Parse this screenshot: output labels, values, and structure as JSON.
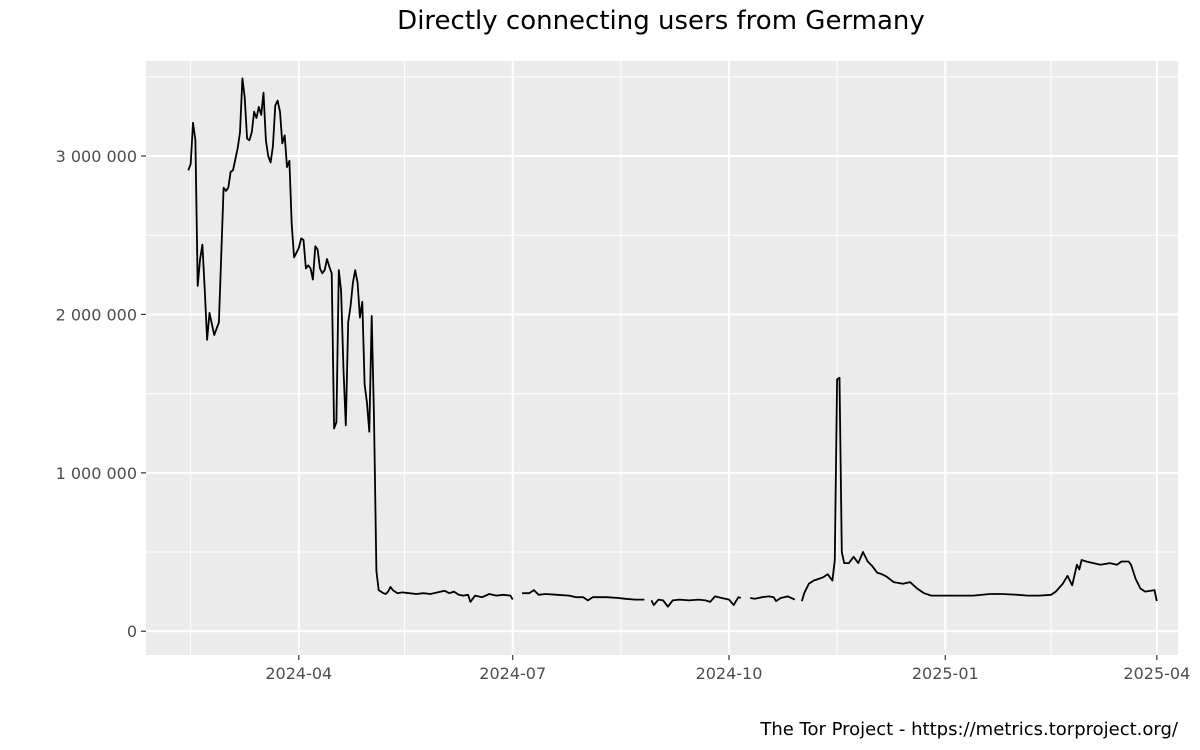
{
  "chart_data": {
    "type": "line",
    "title": "Directly connecting users from Germany",
    "xlabel": "",
    "ylabel": "",
    "ylim": [
      -150000,
      3600000
    ],
    "xlim": [
      "2024-01-27",
      "2025-04-10"
    ],
    "y_ticks": [
      0,
      1000000,
      2000000,
      3000000
    ],
    "y_tick_labels": [
      "0",
      "1 000 000",
      "2 000 000",
      "3 000 000"
    ],
    "x_ticks": [
      "2024-04-01",
      "2024-07-01",
      "2024-10-01",
      "2025-01-01",
      "2025-04-01"
    ],
    "x_tick_labels": [
      "2024-04",
      "2024-07",
      "2024-10",
      "2025-01",
      "2025-04"
    ],
    "x_minor_ticks": [
      "2024-02-15",
      "2024-05-16",
      "2024-08-16",
      "2024-11-16",
      "2025-02-15"
    ],
    "series": [
      {
        "name": "Directly connecting users",
        "color": "#000000",
        "points": [
          [
            "2024-02-14",
            2910000
          ],
          [
            "2024-02-15",
            2950000
          ],
          [
            "2024-02-16",
            3210000
          ],
          [
            "2024-02-17",
            3100000
          ],
          [
            "2024-02-18",
            2180000
          ],
          [
            "2024-02-19",
            2350000
          ],
          [
            "2024-02-20",
            2440000
          ],
          [
            "2024-02-21",
            2150000
          ],
          [
            "2024-02-22",
            1840000
          ],
          [
            "2024-02-23",
            2010000
          ],
          [
            "2024-02-25",
            1870000
          ],
          [
            "2024-02-27",
            1950000
          ],
          [
            "2024-02-29",
            2800000
          ],
          [
            "2024-03-01",
            2780000
          ],
          [
            "2024-03-02",
            2800000
          ],
          [
            "2024-03-03",
            2900000
          ],
          [
            "2024-03-04",
            2910000
          ],
          [
            "2024-03-06",
            3050000
          ],
          [
            "2024-03-07",
            3150000
          ],
          [
            "2024-03-08",
            3490000
          ],
          [
            "2024-03-09",
            3370000
          ],
          [
            "2024-03-10",
            3110000
          ],
          [
            "2024-03-11",
            3100000
          ],
          [
            "2024-03-12",
            3150000
          ],
          [
            "2024-03-13",
            3280000
          ],
          [
            "2024-03-14",
            3240000
          ],
          [
            "2024-03-15",
            3310000
          ],
          [
            "2024-03-16",
            3260000
          ],
          [
            "2024-03-17",
            3400000
          ],
          [
            "2024-03-18",
            3100000
          ],
          [
            "2024-03-19",
            3000000
          ],
          [
            "2024-03-20",
            2960000
          ],
          [
            "2024-03-21",
            3060000
          ],
          [
            "2024-03-22",
            3320000
          ],
          [
            "2024-03-23",
            3350000
          ],
          [
            "2024-03-24",
            3280000
          ],
          [
            "2024-03-25",
            3080000
          ],
          [
            "2024-03-26",
            3130000
          ],
          [
            "2024-03-27",
            2930000
          ],
          [
            "2024-03-28",
            2970000
          ],
          [
            "2024-03-29",
            2570000
          ],
          [
            "2024-03-30",
            2360000
          ],
          [
            "2024-03-31",
            2390000
          ],
          [
            "2024-04-01",
            2420000
          ],
          [
            "2024-04-02",
            2480000
          ],
          [
            "2024-04-03",
            2470000
          ],
          [
            "2024-04-04",
            2290000
          ],
          [
            "2024-04-05",
            2310000
          ],
          [
            "2024-04-06",
            2290000
          ],
          [
            "2024-04-07",
            2220000
          ],
          [
            "2024-04-08",
            2430000
          ],
          [
            "2024-04-09",
            2410000
          ],
          [
            "2024-04-10",
            2290000
          ],
          [
            "2024-04-11",
            2260000
          ],
          [
            "2024-04-12",
            2280000
          ],
          [
            "2024-04-13",
            2350000
          ],
          [
            "2024-04-14",
            2300000
          ],
          [
            "2024-04-15",
            2260000
          ],
          [
            "2024-04-16",
            1280000
          ],
          [
            "2024-04-17",
            1320000
          ],
          [
            "2024-04-18",
            2280000
          ],
          [
            "2024-04-19",
            2150000
          ],
          [
            "2024-04-20",
            1650000
          ],
          [
            "2024-04-21",
            1300000
          ],
          [
            "2024-04-22",
            1950000
          ],
          [
            "2024-04-23",
            2050000
          ],
          [
            "2024-04-24",
            2200000
          ],
          [
            "2024-04-25",
            2280000
          ],
          [
            "2024-04-26",
            2200000
          ],
          [
            "2024-04-27",
            1980000
          ],
          [
            "2024-04-28",
            2080000
          ],
          [
            "2024-04-29",
            1560000
          ],
          [
            "2024-04-30",
            1440000
          ],
          [
            "2024-05-01",
            1260000
          ],
          [
            "2024-05-02",
            1990000
          ],
          [
            "2024-05-03",
            1350000
          ],
          [
            "2024-05-04",
            380000
          ],
          [
            "2024-05-05",
            260000
          ],
          [
            "2024-05-07",
            240000
          ],
          [
            "2024-05-08",
            235000
          ],
          [
            "2024-05-09",
            250000
          ],
          [
            "2024-05-10",
            280000
          ],
          [
            "2024-05-11",
            260000
          ],
          [
            "2024-05-13",
            240000
          ],
          [
            "2024-05-15",
            245000
          ],
          [
            "2024-05-18",
            240000
          ],
          [
            "2024-05-21",
            235000
          ],
          [
            "2024-05-24",
            240000
          ],
          [
            "2024-05-27",
            235000
          ],
          [
            "2024-05-30",
            245000
          ],
          [
            "2024-06-02",
            255000
          ],
          [
            "2024-06-04",
            240000
          ],
          [
            "2024-06-06",
            250000
          ],
          [
            "2024-06-08",
            230000
          ],
          [
            "2024-06-10",
            225000
          ],
          [
            "2024-06-12",
            230000
          ],
          [
            "2024-06-13",
            185000
          ],
          [
            "2024-06-15",
            225000
          ],
          [
            "2024-06-18",
            215000
          ],
          [
            "2024-06-21",
            235000
          ],
          [
            "2024-06-24",
            225000
          ],
          [
            "2024-06-27",
            230000
          ],
          [
            "2024-06-30",
            225000
          ],
          [
            "2024-07-01",
            200000
          ],
          null,
          [
            "2024-07-05",
            240000
          ],
          [
            "2024-07-08",
            240000
          ],
          [
            "2024-07-10",
            260000
          ],
          [
            "2024-07-12",
            230000
          ],
          [
            "2024-07-15",
            235000
          ],
          [
            "2024-07-20",
            230000
          ],
          [
            "2024-07-25",
            225000
          ],
          [
            "2024-07-28",
            215000
          ],
          [
            "2024-07-31",
            215000
          ],
          [
            "2024-08-02",
            195000
          ],
          [
            "2024-08-04",
            215000
          ],
          [
            "2024-08-10",
            215000
          ],
          [
            "2024-08-15",
            210000
          ],
          [
            "2024-08-18",
            205000
          ],
          [
            "2024-08-22",
            200000
          ],
          [
            "2024-08-26",
            200000
          ],
          null,
          [
            "2024-08-29",
            195000
          ],
          [
            "2024-08-30",
            165000
          ],
          [
            "2024-09-01",
            200000
          ],
          [
            "2024-09-03",
            195000
          ],
          [
            "2024-09-05",
            155000
          ],
          [
            "2024-09-07",
            195000
          ],
          [
            "2024-09-10",
            200000
          ],
          [
            "2024-09-14",
            195000
          ],
          [
            "2024-09-18",
            200000
          ],
          [
            "2024-09-21",
            195000
          ],
          [
            "2024-09-23",
            185000
          ],
          [
            "2024-09-25",
            220000
          ],
          [
            "2024-09-28",
            210000
          ],
          [
            "2024-10-01",
            200000
          ],
          [
            "2024-10-03",
            165000
          ],
          [
            "2024-10-05",
            215000
          ],
          [
            "2024-10-06",
            210000
          ],
          null,
          [
            "2024-10-10",
            210000
          ],
          [
            "2024-10-12",
            205000
          ],
          [
            "2024-10-15",
            215000
          ],
          [
            "2024-10-18",
            220000
          ],
          [
            "2024-10-20",
            215000
          ],
          [
            "2024-10-21",
            190000
          ],
          [
            "2024-10-23",
            210000
          ],
          [
            "2024-10-26",
            220000
          ],
          [
            "2024-10-29",
            200000
          ],
          null,
          [
            "2024-11-01",
            190000
          ],
          [
            "2024-11-02",
            240000
          ],
          [
            "2024-11-04",
            300000
          ],
          [
            "2024-11-06",
            320000
          ],
          [
            "2024-11-08",
            330000
          ],
          [
            "2024-11-10",
            340000
          ],
          [
            "2024-11-12",
            360000
          ],
          [
            "2024-11-14",
            320000
          ],
          [
            "2024-11-15",
            450000
          ],
          [
            "2024-11-16",
            1590000
          ],
          [
            "2024-11-17",
            1600000
          ],
          [
            "2024-11-18",
            500000
          ],
          [
            "2024-11-19",
            430000
          ],
          [
            "2024-11-21",
            430000
          ],
          [
            "2024-11-23",
            470000
          ],
          [
            "2024-11-25",
            430000
          ],
          [
            "2024-11-27",
            500000
          ],
          [
            "2024-11-29",
            440000
          ],
          [
            "2024-12-01",
            410000
          ],
          [
            "2024-12-03",
            370000
          ],
          [
            "2024-12-05",
            360000
          ],
          [
            "2024-12-07",
            345000
          ],
          [
            "2024-12-10",
            310000
          ],
          [
            "2024-12-14",
            300000
          ],
          [
            "2024-12-17",
            310000
          ],
          [
            "2024-12-20",
            270000
          ],
          [
            "2024-12-23",
            240000
          ],
          [
            "2024-12-26",
            225000
          ],
          [
            "2024-12-30",
            225000
          ],
          [
            "2025-01-03",
            225000
          ],
          [
            "2025-01-08",
            225000
          ],
          [
            "2025-01-13",
            225000
          ],
          [
            "2025-01-20",
            235000
          ],
          [
            "2025-01-25",
            235000
          ],
          [
            "2025-02-01",
            230000
          ],
          [
            "2025-02-05",
            225000
          ],
          [
            "2025-02-10",
            225000
          ],
          [
            "2025-02-15",
            230000
          ],
          [
            "2025-02-17",
            250000
          ],
          [
            "2025-02-20",
            300000
          ],
          [
            "2025-02-22",
            350000
          ],
          [
            "2025-02-24",
            290000
          ],
          [
            "2025-02-26",
            420000
          ],
          [
            "2025-02-27",
            390000
          ],
          [
            "2025-02-28",
            450000
          ],
          [
            "2025-03-02",
            440000
          ],
          [
            "2025-03-05",
            430000
          ],
          [
            "2025-03-08",
            420000
          ],
          [
            "2025-03-12",
            430000
          ],
          [
            "2025-03-15",
            420000
          ],
          [
            "2025-03-17",
            440000
          ],
          [
            "2025-03-20",
            440000
          ],
          [
            "2025-03-21",
            420000
          ],
          [
            "2025-03-23",
            330000
          ],
          [
            "2025-03-25",
            270000
          ],
          [
            "2025-03-27",
            250000
          ],
          [
            "2025-03-31",
            260000
          ],
          [
            "2025-04-01",
            190000
          ]
        ]
      }
    ],
    "grid": true,
    "panel_background": "#ebebeb",
    "grid_color": "#ffffff",
    "legend": "none"
  },
  "caption": "The Tor Project - https://metrics.torproject.org/"
}
